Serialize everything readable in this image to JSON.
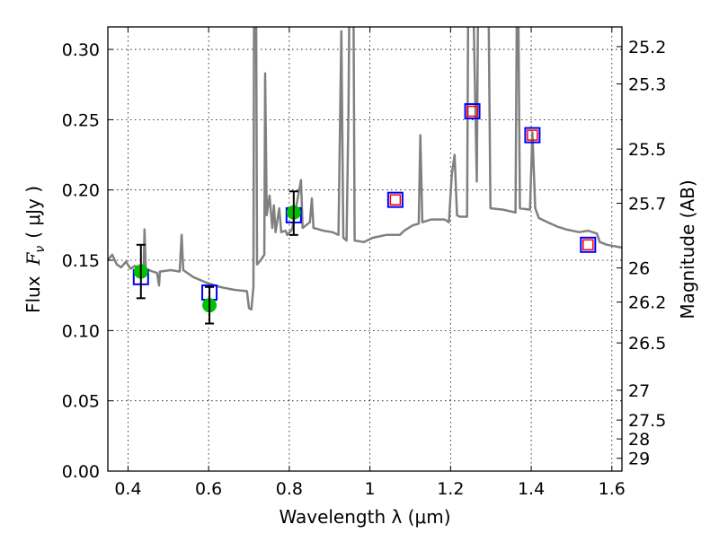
{
  "chart_data": {
    "type": "line",
    "xlabel": "Wavelength  λ (μm)",
    "ylabel_prefix": "Flux",
    "ylabel_symbol": "F",
    "ylabel_sub": "ν",
    "ylabel_unit": "( μJy )",
    "y2label": "Magnitude (AB)",
    "xlim": [
      0.35,
      1.625
    ],
    "ylim": [
      0.0,
      0.316
    ],
    "grid": true,
    "x_ticks": [
      0.4,
      0.6,
      0.8,
      1.0,
      1.2,
      1.4,
      1.6
    ],
    "x_tick_labels": [
      "0.4",
      "0.6",
      "0.8",
      "1",
      "1.2",
      "1.4",
      "1.6"
    ],
    "y_ticks": [
      0.0,
      0.05,
      0.1,
      0.15,
      0.2,
      0.25,
      0.3
    ],
    "y_tick_labels": [
      "0.00",
      "0.05",
      "0.10",
      "0.15",
      "0.20",
      "0.25",
      "0.30"
    ],
    "y2_ticks": [
      25.2,
      25.3,
      25.5,
      25.7,
      26,
      26.2,
      26.5,
      27,
      27.5,
      28,
      29
    ],
    "y2_tick_labels": [
      "25.2",
      "25.3",
      "25.5",
      "25.7",
      "26",
      "26.2",
      "26.5",
      "27",
      "27.5",
      "28",
      "29"
    ],
    "y2_zero_point": 23.9,
    "colors": {
      "spectrum": "#808080",
      "observed": "#00c000",
      "model_box": "#0000ff",
      "model_inner": "#ff0000",
      "errorbar": "#000000"
    },
    "spectrum": [
      [
        0.35,
        0.15
      ],
      [
        0.361,
        0.154
      ],
      [
        0.372,
        0.147
      ],
      [
        0.383,
        0.145
      ],
      [
        0.395,
        0.149
      ],
      [
        0.406,
        0.144
      ],
      [
        0.417,
        0.146
      ],
      [
        0.428,
        0.144
      ],
      [
        0.439,
        0.147
      ],
      [
        0.441,
        0.172
      ],
      [
        0.444,
        0.144
      ],
      [
        0.461,
        0.142
      ],
      [
        0.472,
        0.141
      ],
      [
        0.477,
        0.132
      ],
      [
        0.479,
        0.142
      ],
      [
        0.506,
        0.143
      ],
      [
        0.528,
        0.142
      ],
      [
        0.533,
        0.168
      ],
      [
        0.537,
        0.143
      ],
      [
        0.562,
        0.138
      ],
      [
        0.595,
        0.134
      ],
      [
        0.628,
        0.131
      ],
      [
        0.662,
        0.129
      ],
      [
        0.695,
        0.128
      ],
      [
        0.7,
        0.116
      ],
      [
        0.706,
        0.115
      ],
      [
        0.711,
        0.131
      ],
      [
        0.713,
        0.4
      ],
      [
        0.717,
        0.4
      ],
      [
        0.72,
        0.147
      ],
      [
        0.729,
        0.15
      ],
      [
        0.738,
        0.154
      ],
      [
        0.74,
        0.283
      ],
      [
        0.744,
        0.182
      ],
      [
        0.751,
        0.196
      ],
      [
        0.758,
        0.173
      ],
      [
        0.762,
        0.189
      ],
      [
        0.766,
        0.17
      ],
      [
        0.775,
        0.187
      ],
      [
        0.78,
        0.17
      ],
      [
        0.791,
        0.171
      ],
      [
        0.795,
        0.168
      ],
      [
        0.807,
        0.172
      ],
      [
        0.829,
        0.207
      ],
      [
        0.833,
        0.173
      ],
      [
        0.851,
        0.177
      ],
      [
        0.856,
        0.194
      ],
      [
        0.86,
        0.173
      ],
      [
        0.885,
        0.171
      ],
      [
        0.907,
        0.17
      ],
      [
        0.922,
        0.168
      ],
      [
        0.929,
        0.313
      ],
      [
        0.934,
        0.166
      ],
      [
        0.942,
        0.164
      ],
      [
        0.947,
        0.259
      ],
      [
        0.951,
        0.4
      ],
      [
        0.958,
        0.4
      ],
      [
        0.962,
        0.164
      ],
      [
        0.985,
        0.163
      ],
      [
        1.007,
        0.166
      ],
      [
        1.04,
        0.168
      ],
      [
        1.074,
        0.168
      ],
      [
        1.085,
        0.171
      ],
      [
        1.107,
        0.175
      ],
      [
        1.121,
        0.176
      ],
      [
        1.125,
        0.239
      ],
      [
        1.13,
        0.177
      ],
      [
        1.152,
        0.179
      ],
      [
        1.185,
        0.179
      ],
      [
        1.196,
        0.177
      ],
      [
        1.203,
        0.211
      ],
      [
        1.21,
        0.225
      ],
      [
        1.216,
        0.182
      ],
      [
        1.223,
        0.181
      ],
      [
        1.241,
        0.181
      ],
      [
        1.245,
        0.4
      ],
      [
        1.252,
        0.4
      ],
      [
        1.265,
        0.206
      ],
      [
        1.27,
        0.4
      ],
      [
        1.292,
        0.4
      ],
      [
        1.299,
        0.187
      ],
      [
        1.33,
        0.186
      ],
      [
        1.361,
        0.184
      ],
      [
        1.366,
        0.4
      ],
      [
        1.372,
        0.187
      ],
      [
        1.397,
        0.186
      ],
      [
        1.403,
        0.241
      ],
      [
        1.41,
        0.187
      ],
      [
        1.419,
        0.18
      ],
      [
        1.441,
        0.177
      ],
      [
        1.464,
        0.174
      ],
      [
        1.486,
        0.172
      ],
      [
        1.519,
        0.17
      ],
      [
        1.541,
        0.171
      ],
      [
        1.563,
        0.169
      ],
      [
        1.57,
        0.163
      ],
      [
        1.588,
        0.161
      ],
      [
        1.624,
        0.159
      ]
    ],
    "observed": [
      {
        "x": 0.432,
        "y": 0.142,
        "ylo": 0.123,
        "yhi": 0.161
      },
      {
        "x": 0.602,
        "y": 0.118,
        "ylo": 0.105,
        "yhi": 0.131
      },
      {
        "x": 0.811,
        "y": 0.184,
        "ylo": 0.168,
        "yhi": 0.199
      }
    ],
    "model_photometry": [
      {
        "x": 0.432,
        "y": 0.138,
        "inner": false
      },
      {
        "x": 0.602,
        "y": 0.127,
        "inner": false
      },
      {
        "x": 0.811,
        "y": 0.182,
        "inner": false
      },
      {
        "x": 1.063,
        "y": 0.193,
        "inner": true
      },
      {
        "x": 1.254,
        "y": 0.256,
        "inner": true
      },
      {
        "x": 1.403,
        "y": 0.239,
        "inner": true
      },
      {
        "x": 1.541,
        "y": 0.161,
        "inner": true
      }
    ]
  }
}
